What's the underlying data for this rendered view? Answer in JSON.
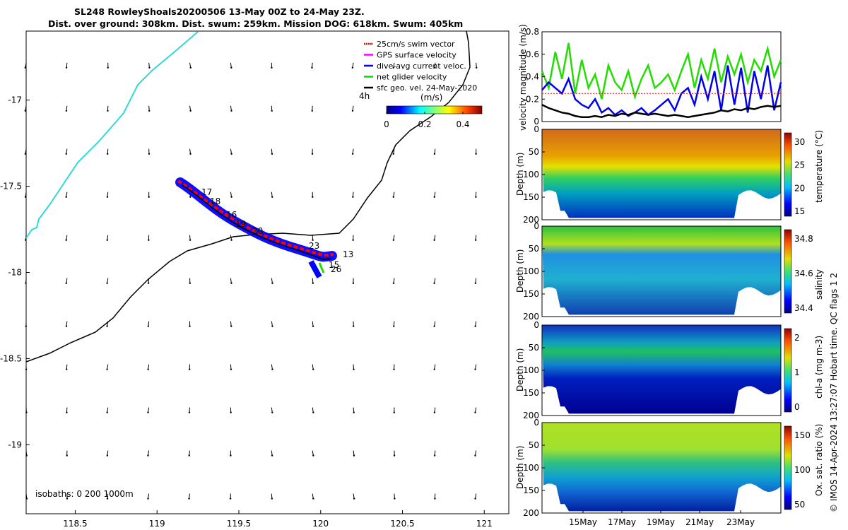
{
  "title_line1": "SL248 RowleyShoals20200506 13-May 00Z to 24-May 23Z.",
  "title_line2": "Dist. over ground: 308km. Dist. swum: 259km. Mission DOG: 618km. Swum: 405km",
  "credit": "© IMOS 14-Apr-2024 13:27:07 Hobart time. QC flags 1  2",
  "map": {
    "xlim": [
      118.2,
      121.15
    ],
    "ylim": [
      -19.4,
      -16.6
    ],
    "xticks": [
      "118.5",
      "119",
      "119.5",
      "120",
      "120.5",
      "121"
    ],
    "yticks": [
      "-17",
      "-17.5",
      "-18",
      "-18.5",
      "-19"
    ],
    "isobaths_label": "isobaths: 0   200  1000m",
    "day_labels": [
      "17",
      "18",
      "16",
      "19",
      "20",
      "23",
      "13",
      "15",
      "26"
    ],
    "legend": [
      {
        "label": "25cm/s swim vector",
        "color": "#ff0000"
      },
      {
        "label": "GPS surface velocity",
        "color": "#ff00ff"
      },
      {
        "label": "dive-avg current veloc.",
        "color": "#0000ff"
      },
      {
        "label": "net glider velocity",
        "color": "#00dd00"
      },
      {
        "label": "sfc geo. vel. 24-May-2020",
        "color": "#000000"
      }
    ],
    "colorbar": {
      "label": "(m/s)",
      "ticks": [
        "0",
        "0.2",
        "0.4"
      ],
      "scale_note": "4h"
    },
    "coast_color": "#00e5e5"
  },
  "chart_data": [
    {
      "type": "line",
      "panel": "velocity",
      "ylabel": "velocity magnitude (m/s)",
      "ylim": [
        0,
        0.8
      ],
      "yticks": [
        "0",
        "0.2",
        "0.4",
        "0.6",
        "0.8"
      ],
      "series": [
        {
          "color": "#22dd00",
          "values": [
            0.45,
            0.3,
            0.62,
            0.38,
            0.7,
            0.25,
            0.55,
            0.3,
            0.42,
            0.2,
            0.5,
            0.35,
            0.28,
            0.45,
            0.22,
            0.38,
            0.5,
            0.3,
            0.35,
            0.42,
            0.28,
            0.45,
            0.6,
            0.3,
            0.55,
            0.38,
            0.65,
            0.35,
            0.58,
            0.42,
            0.6,
            0.35,
            0.55,
            0.45,
            0.65,
            0.4,
            0.55
          ]
        },
        {
          "color": "#0000ee",
          "values": [
            0.28,
            0.35,
            0.3,
            0.25,
            0.38,
            0.2,
            0.15,
            0.12,
            0.2,
            0.08,
            0.12,
            0.06,
            0.1,
            0.05,
            0.08,
            0.12,
            0.06,
            0.1,
            0.15,
            0.2,
            0.1,
            0.25,
            0.3,
            0.15,
            0.4,
            0.2,
            0.45,
            0.1,
            0.5,
            0.15,
            0.48,
            0.08,
            0.45,
            0.2,
            0.5,
            0.1,
            0.35
          ]
        },
        {
          "color": "#000000",
          "values": [
            0.15,
            0.12,
            0.1,
            0.08,
            0.07,
            0.05,
            0.04,
            0.04,
            0.05,
            0.04,
            0.06,
            0.05,
            0.07,
            0.06,
            0.08,
            0.07,
            0.06,
            0.07,
            0.06,
            0.05,
            0.06,
            0.05,
            0.04,
            0.05,
            0.06,
            0.07,
            0.08,
            0.1,
            0.09,
            0.11,
            0.1,
            0.12,
            0.11,
            0.13,
            0.14,
            0.13,
            0.14
          ]
        },
        {
          "color": "#ff0000",
          "values": [
            0.25,
            0.25
          ]
        }
      ]
    },
    {
      "type": "heatmap",
      "panel": "temperature",
      "ylabel": "Depth (m)",
      "ylim": [
        0,
        200
      ],
      "yticks": [
        "0",
        "50",
        "100",
        "150",
        "200"
      ],
      "cbar_label": "temperature (°C)",
      "cbar_ticks": [
        "15",
        "20",
        "25",
        "30"
      ]
    },
    {
      "type": "heatmap",
      "panel": "salinity",
      "ylabel": "Depth (m)",
      "ylim": [
        0,
        200
      ],
      "yticks": [
        "0",
        "50",
        "100",
        "150",
        "200"
      ],
      "cbar_label": "salinity",
      "cbar_ticks": [
        "34.4",
        "34.6",
        "34.8"
      ]
    },
    {
      "type": "heatmap",
      "panel": "chlorophyll",
      "ylabel": "Depth (m)",
      "ylim": [
        0,
        200
      ],
      "yticks": [
        "0",
        "50",
        "100",
        "150",
        "200"
      ],
      "cbar_label": "chl-a (mg m-3)",
      "cbar_ticks": [
        "0",
        "1",
        "2"
      ]
    },
    {
      "type": "heatmap",
      "panel": "oxygen",
      "ylabel": "Depth (m)",
      "ylim": [
        0,
        200
      ],
      "yticks": [
        "0",
        "50",
        "100",
        "150",
        "200"
      ],
      "cbar_label": "Ox. sat. ratio (%)",
      "cbar_ticks": [
        "50",
        "100",
        "150"
      ],
      "xticks": [
        "15May",
        "17May",
        "19May",
        "21May",
        "23May"
      ]
    }
  ]
}
